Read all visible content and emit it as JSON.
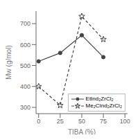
{
  "chart_data": {
    "type": "line",
    "x": [
      0,
      25,
      50,
      75
    ],
    "series": [
      {
        "name": "EtInd₂ZrCl₂",
        "color": "#444444",
        "values": [
          520,
          560,
          645,
          540
        ],
        "marker": "circle",
        "line_style": "solid"
      },
      {
        "name": "Me₂CInd₂ZrCl₂",
        "color": "#444444",
        "values": [
          400,
          310,
          735,
          625
        ],
        "marker": "star",
        "line_style": "dashed"
      }
    ],
    "xlabel": "TIBA (%)",
    "ylabel": "Mw (g/mol)",
    "xlim": [
      -3,
      103
    ],
    "ylim": [
      270,
      760
    ],
    "xticks": [
      0,
      25,
      50,
      75,
      100
    ],
    "yticks": [
      300,
      400,
      500,
      600,
      700
    ],
    "legend": "lower right",
    "grid": false
  }
}
